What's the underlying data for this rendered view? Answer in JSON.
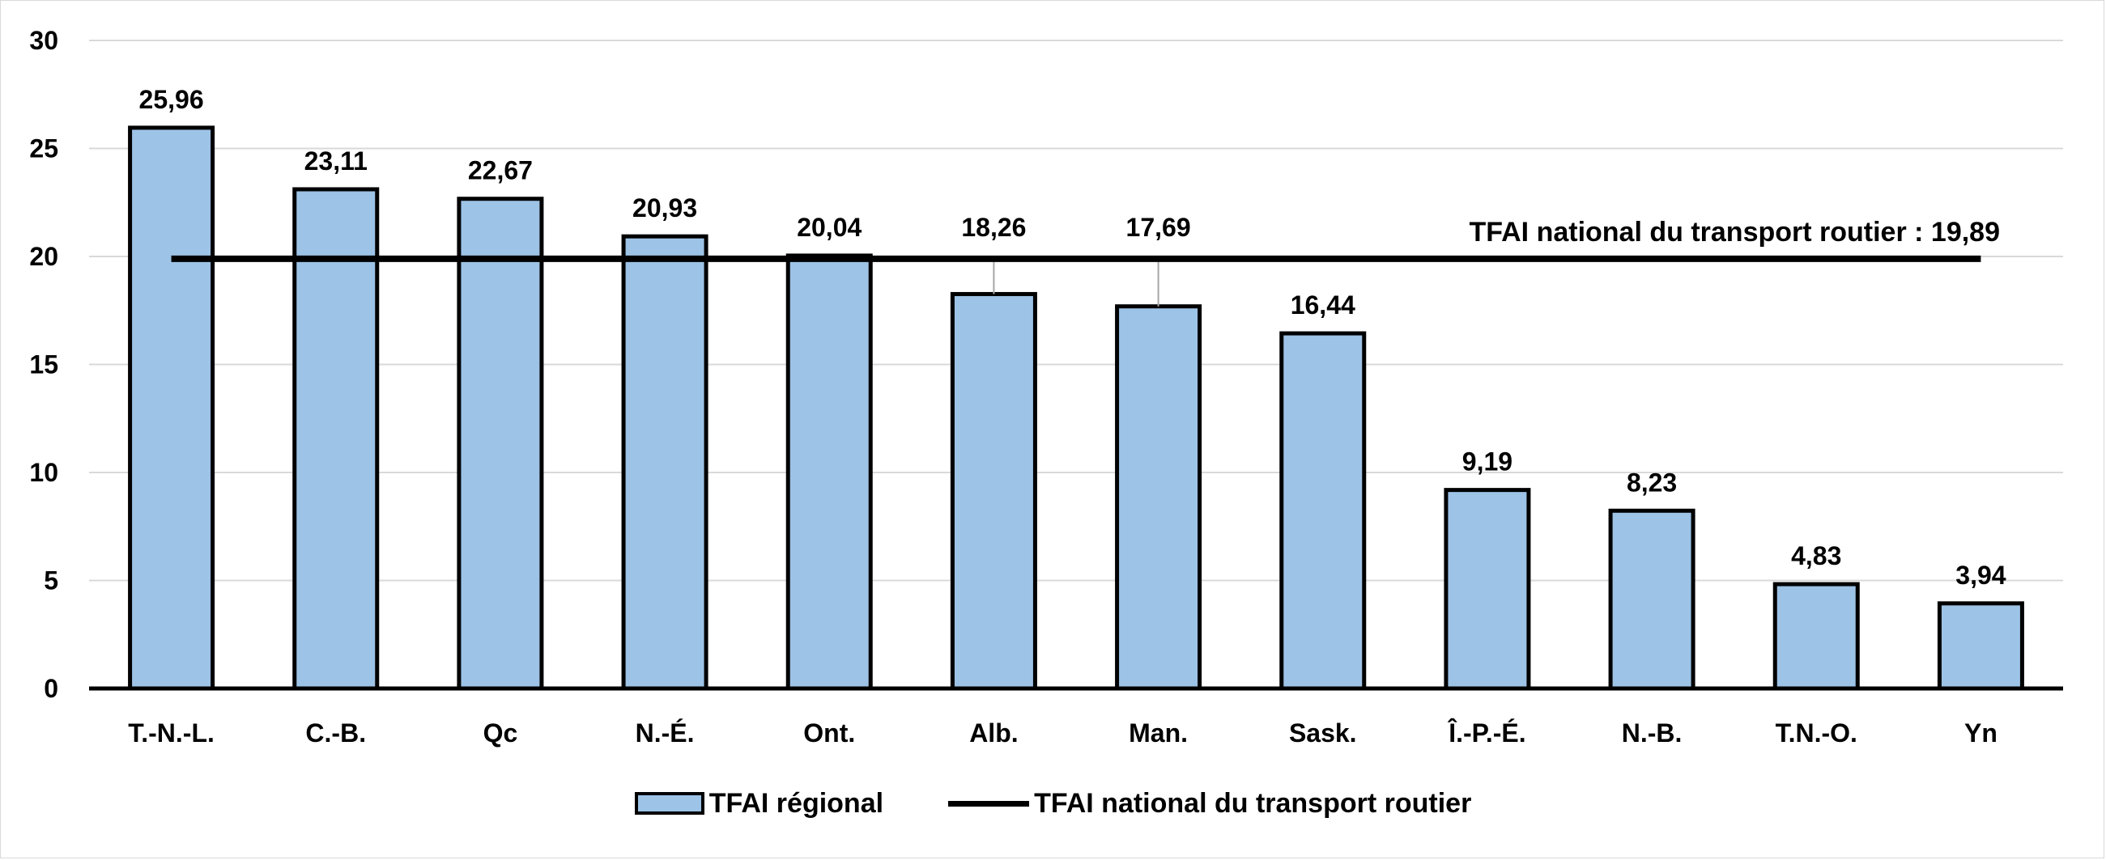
{
  "chart_data": {
    "type": "bar",
    "categories": [
      "T.-N.-L.",
      "C.-B.",
      "Qc",
      "N.-É.",
      "Ont.",
      "Alb.",
      "Man.",
      "Sask.",
      "Î.-P.-É.",
      "N.-B.",
      "T.N.-O.",
      "Yn"
    ],
    "series": [
      {
        "name": "TFAI régional",
        "values": [
          25.96,
          23.11,
          22.67,
          20.93,
          20.04,
          18.26,
          17.69,
          16.44,
          9.19,
          8.23,
          4.83,
          3.94
        ],
        "value_labels": [
          "25,96",
          "23,11",
          "22,67",
          "20,93",
          "20,04",
          "18,26",
          "17,69",
          "16,44",
          "9,19",
          "8,23",
          "4,83",
          "3,94"
        ],
        "color": "#9dc3e6"
      }
    ],
    "reference_line": {
      "name": "TFAI national du transport routier",
      "value": 19.89,
      "label": "TFAI national du transport routier : 19,89",
      "color": "#000000"
    },
    "ylim": [
      0,
      30
    ],
    "yticks": [
      0,
      5,
      10,
      15,
      20,
      25,
      30
    ],
    "title": "",
    "xlabel": "",
    "ylabel": "",
    "grid": true,
    "legend_position": "bottom"
  },
  "legend": {
    "bar_label": "TFAI régional",
    "line_label": "TFAI national du transport routier"
  }
}
